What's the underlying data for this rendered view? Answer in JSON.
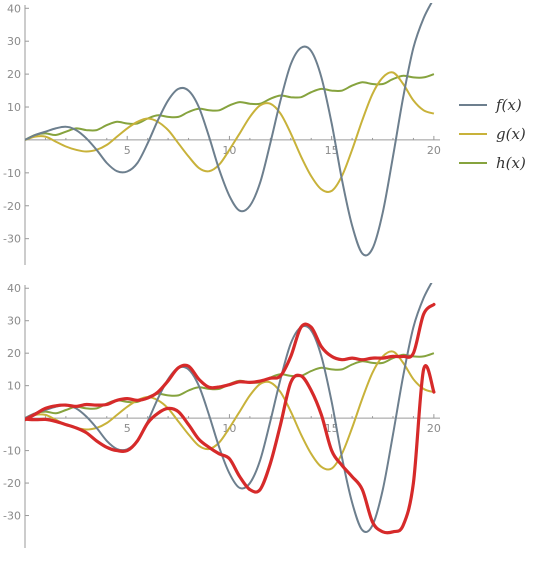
{
  "chart_data": [
    {
      "type": "line",
      "x": [
        0,
        0.5,
        1,
        1.5,
        2,
        2.5,
        3,
        3.5,
        4,
        4.5,
        5,
        5.5,
        6,
        6.5,
        7,
        7.5,
        8,
        8.5,
        9,
        9.5,
        10,
        10.5,
        11,
        11.5,
        12,
        12.5,
        13,
        13.5,
        14,
        14.5,
        15,
        15.5,
        16,
        16.5,
        17,
        17.5,
        18,
        18.5,
        19,
        19.5,
        20
      ],
      "xlim": [
        0,
        20.3
      ],
      "ylim": [
        -38,
        41
      ],
      "xticks": [
        "5",
        "10",
        "15",
        "20"
      ],
      "xtick_values": [
        5,
        10,
        15,
        20
      ],
      "yticks": [
        "40",
        "30",
        "20",
        "10",
        "-10",
        "-20",
        "-30"
      ],
      "ytick_values": [
        40,
        30,
        20,
        10,
        -10,
        -20,
        -30
      ],
      "series": [
        {
          "name": "f(x)",
          "color": "#6d7f8e",
          "values": [
            0,
            1.5,
            2.5,
            3.5,
            4,
            3,
            0.5,
            -3,
            -7,
            -9.5,
            -9.6,
            -7,
            -1,
            6,
            12,
            15.5,
            15,
            10,
            1,
            -9,
            -17,
            -21.5,
            -20,
            -13,
            -1,
            12,
            23,
            28,
            27,
            19,
            5,
            -12,
            -26,
            -34.5,
            -33,
            -22,
            -5,
            13,
            28,
            37,
            43
          ]
        },
        {
          "name": "g(x)",
          "color": "#c8b23a",
          "values": [
            0,
            1,
            1,
            -0.5,
            -2,
            -3,
            -3.5,
            -3,
            -1.5,
            1,
            3.5,
            5.5,
            6.5,
            5.5,
            3,
            -1,
            -5,
            -8.5,
            -9.5,
            -7.5,
            -3,
            2,
            7,
            10.5,
            11,
            8,
            2,
            -5,
            -11,
            -15,
            -15.5,
            -11,
            -3,
            6,
            14,
            19,
            20.5,
            17,
            12,
            9,
            8
          ]
        },
        {
          "name": "h(x)",
          "color": "#86a33e",
          "values": [
            0,
            1.5,
            2,
            1.5,
            2.5,
            3.5,
            3,
            3,
            4.5,
            5.5,
            5,
            5,
            6.5,
            7.5,
            7,
            7,
            8.5,
            9.5,
            9,
            9,
            10.5,
            11.5,
            11,
            11,
            12.5,
            13.5,
            13,
            13,
            14.5,
            15.5,
            15,
            15,
            16.5,
            17.5,
            17,
            17,
            18.5,
            19.5,
            19,
            19,
            20
          ]
        }
      ],
      "legend": {
        "placement": "right",
        "labels": [
          "f(x)",
          "g(x)",
          "h(x)"
        ]
      }
    },
    {
      "type": "line",
      "x": [
        0,
        0.5,
        1,
        1.5,
        2,
        2.5,
        3,
        3.5,
        4,
        4.5,
        5,
        5.5,
        6,
        6.5,
        7,
        7.5,
        8,
        8.5,
        9,
        9.5,
        10,
        10.5,
        11,
        11.5,
        12,
        12.5,
        13,
        13.5,
        14,
        14.5,
        15,
        15.5,
        16,
        16.5,
        17,
        17.5,
        18,
        18.5,
        19,
        19.5,
        20
      ],
      "xlim": [
        0,
        20.3
      ],
      "ylim": [
        -40,
        41
      ],
      "xticks": [
        "5",
        "10",
        "15",
        "20"
      ],
      "xtick_values": [
        5,
        10,
        15,
        20
      ],
      "yticks": [
        "40",
        "30",
        "20",
        "10",
        "-10",
        "-20",
        "-30"
      ],
      "ytick_values": [
        40,
        30,
        20,
        10,
        -10,
        -20,
        -30
      ],
      "series": [
        {
          "name": "f(x)",
          "color": "#6d7f8e",
          "values": [
            0,
            1.5,
            2.5,
            3.5,
            4,
            3,
            0.5,
            -3,
            -7,
            -9.5,
            -9.6,
            -7,
            -1,
            6,
            12,
            15.5,
            15,
            10,
            1,
            -9,
            -17,
            -21.5,
            -20,
            -13,
            -1,
            12,
            23,
            28,
            27,
            19,
            5,
            -12,
            -26,
            -34.5,
            -33,
            -22,
            -5,
            13,
            28,
            37,
            43
          ]
        },
        {
          "name": "g(x)",
          "color": "#c8b23a",
          "values": [
            0,
            1,
            1,
            -0.5,
            -2,
            -3,
            -3.5,
            -3,
            -1.5,
            1,
            3.5,
            5.5,
            6.5,
            5.5,
            3,
            -1,
            -5,
            -8.5,
            -9.5,
            -7.5,
            -3,
            2,
            7,
            10.5,
            11,
            8,
            2,
            -5,
            -11,
            -15,
            -15.5,
            -11,
            -3,
            6,
            14,
            19,
            20.5,
            17,
            12,
            9,
            8
          ]
        },
        {
          "name": "h(x)",
          "color": "#86a33e",
          "values": [
            0,
            1.5,
            2,
            1.5,
            2.5,
            3.5,
            3,
            3,
            4.5,
            5.5,
            5,
            5,
            6.5,
            7.5,
            7,
            7,
            8.5,
            9.5,
            9,
            9,
            10.5,
            11.5,
            11,
            11,
            12.5,
            13.5,
            13,
            13,
            14.5,
            15.5,
            15,
            15,
            16.5,
            17.5,
            17,
            17,
            18.5,
            19.5,
            19,
            19,
            20
          ]
        }
      ],
      "overlay_traces": {
        "color": "#d62a2a",
        "paths": [
          {
            "x": [
              0,
              0.5,
              1,
              1.5,
              2,
              2.5,
              3,
              3.5,
              4,
              4.5,
              5,
              5.5,
              6,
              6.5,
              7,
              7.5,
              8,
              8.5,
              9,
              9.5,
              10,
              10.5,
              11,
              11.5,
              12,
              12.5,
              13,
              13.5,
              14,
              14.5,
              15,
              15.5,
              16,
              16.5,
              17,
              17.5,
              18,
              18.5,
              19,
              19.5,
              20
            ],
            "y": [
              -0.5,
              1.2,
              3,
              3.8,
              4,
              3.6,
              4.2,
              4,
              4.2,
              5.5,
              6,
              5.5,
              6.2,
              8,
              11.5,
              15.5,
              16,
              12,
              9.5,
              9.6,
              10.3,
              11.2,
              11,
              11.4,
              12.3,
              13,
              19,
              28,
              28,
              22,
              19,
              18,
              18.5,
              18,
              18.5,
              18.5,
              19,
              19,
              20,
              32,
              35
            ]
          },
          {
            "x": [
              0,
              0.5,
              1,
              1.5,
              2,
              2.5,
              3,
              3.5,
              4,
              4.5,
              5,
              5.5,
              6,
              6.5,
              7,
              7.5,
              8,
              8.5,
              9,
              9.5,
              10,
              10.5,
              11,
              11.5,
              12,
              12.5,
              13,
              13.5,
              14,
              14.5,
              15,
              15.5,
              16,
              16.5,
              17,
              17.5,
              18,
              18.5,
              19,
              19.5,
              20
            ],
            "y": [
              -0.3,
              -0.5,
              -0.4,
              -1,
              -2,
              -3,
              -4.5,
              -7,
              -9,
              -10,
              -10,
              -7,
              -1.5,
              1.5,
              3,
              2,
              -2,
              -6.5,
              -9,
              -11,
              -12.5,
              -18,
              -22,
              -22,
              -14,
              -2,
              11,
              13,
              8.5,
              1,
              -10,
              -14.5,
              -18,
              -22,
              -32,
              -35,
              -35,
              -33,
              -20,
              15,
              8
            ]
          }
        ]
      }
    }
  ]
}
